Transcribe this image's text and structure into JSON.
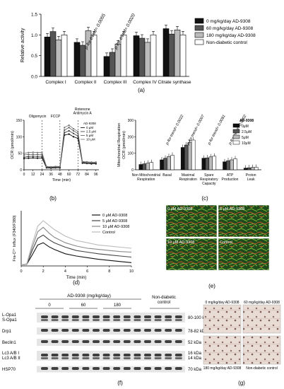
{
  "figure": {
    "panel_labels": [
      "(a)",
      "(b)",
      "(c)",
      "(d)",
      "(e)",
      "(f)",
      "(g)"
    ]
  },
  "colors": {
    "black": "#111111",
    "dark_gray": "#555555",
    "light_gray": "#bbbbbb",
    "white": "#ffffff"
  },
  "chart_data": [
    {
      "id": "a",
      "type": "bar",
      "ylabel": "Relative activity",
      "ylim": [
        0,
        1.5
      ],
      "yticks": [
        "0.0",
        "0.5",
        "1.0",
        "1.5"
      ],
      "categories": [
        "Complex I",
        "Complex II",
        "Complex III",
        "Complex IV",
        "Citrate synthase"
      ],
      "series": [
        {
          "name": "0 mg/kg/day AD-9308",
          "color": "#111111",
          "values": [
            0.95,
            0.82,
            0.48,
            0.98,
            1.15
          ]
        },
        {
          "name": "60 mg/kg/day AD-9308",
          "color": "#555555",
          "values": [
            1.08,
            0.75,
            0.58,
            0.92,
            1.02
          ]
        },
        {
          "name": "180 mg/kg/day AD-9308",
          "color": "#bbbbbb",
          "values": [
            0.88,
            1.1,
            0.78,
            0.82,
            1.12
          ]
        },
        {
          "name": "Non-diabetic control",
          "color": "#ffffff",
          "values": [
            1.0,
            1.0,
            1.0,
            1.0,
            1.0
          ]
        }
      ],
      "annotations": [
        {
          "category": "Complex II",
          "text": "p-for-trend= 0.0055"
        },
        {
          "category": "Complex III",
          "text": "p-for-trend= 0.0020"
        }
      ]
    },
    {
      "id": "b",
      "type": "line",
      "ylabel": "OCR (pmol/min)",
      "xlabel": "Time (min)",
      "ylim": [
        0,
        150
      ],
      "xlim": [
        0,
        100
      ],
      "yticks": [
        "0",
        "50",
        "100",
        "150"
      ],
      "xticks": [
        "0",
        "12",
        "24",
        "36",
        "48",
        "60",
        "72",
        "84",
        "96"
      ],
      "injections": [
        "Oligomycin",
        "FCCP",
        "Rotenone\nAntimycin A"
      ],
      "legend_title": "AD-9308",
      "series": [
        {
          "name": "0 μM",
          "x": [
            0,
            6,
            12,
            18,
            24,
            30,
            36,
            42,
            48,
            54,
            60,
            66,
            72,
            78,
            84,
            90,
            96
          ],
          "y": [
            34,
            35,
            36,
            35,
            36,
            6,
            5,
            6,
            6,
            105,
            108,
            100,
            95,
            20,
            19,
            18,
            18
          ]
        },
        {
          "name": "2.5 μM",
          "x": [
            0,
            6,
            12,
            18,
            24,
            30,
            36,
            42,
            48,
            54,
            60,
            66,
            72,
            78,
            84,
            90,
            96
          ],
          "y": [
            38,
            40,
            41,
            40,
            41,
            8,
            7,
            8,
            8,
            112,
            118,
            110,
            102,
            22,
            20,
            20,
            20
          ]
        },
        {
          "name": "5 μM",
          "x": [
            0,
            6,
            12,
            18,
            24,
            30,
            36,
            42,
            48,
            54,
            60,
            66,
            72,
            78,
            84,
            90,
            96
          ],
          "y": [
            45,
            46,
            47,
            46,
            47,
            9,
            8,
            9,
            9,
            120,
            128,
            118,
            110,
            24,
            22,
            22,
            22
          ]
        },
        {
          "name": "10 μM",
          "x": [
            0,
            6,
            12,
            18,
            24,
            30,
            36,
            42,
            48,
            54,
            60,
            66,
            72,
            78,
            84,
            90,
            96
          ],
          "y": [
            50,
            52,
            53,
            52,
            53,
            10,
            9,
            10,
            10,
            128,
            135,
            124,
            116,
            25,
            24,
            23,
            23
          ]
        }
      ]
    },
    {
      "id": "c",
      "type": "bar",
      "ylabel": "Mitochondrial Respiration\nOCR (pmol/min)",
      "ylim": [
        0,
        300
      ],
      "yticks": [
        "0",
        "100",
        "200",
        "300"
      ],
      "categories": [
        "Non Mitochondrial\nRespiration",
        "Basal",
        "Maximal\nRespiration",
        "Spare\nRespiratory\nCapacity",
        "ATP\nProduction",
        "Proton\nLeak"
      ],
      "legend_title": "AD-9308",
      "series": [
        {
          "name": "0μM",
          "color": "#111111",
          "values": [
            32,
            60,
            135,
            70,
            48,
            10
          ]
        },
        {
          "name": "2.5μM",
          "color": "#555555",
          "values": [
            36,
            70,
            150,
            72,
            55,
            12
          ]
        },
        {
          "name": "5μM",
          "color": "#bbbbbb",
          "values": [
            40,
            80,
            165,
            78,
            60,
            14
          ]
        },
        {
          "name": "10μM",
          "color": "#ffffff",
          "values": [
            44,
            88,
            180,
            82,
            66,
            15
          ]
        }
      ],
      "annotations": [
        {
          "category": "Basal",
          "text": "p-for-trend= 0.0022"
        },
        {
          "category": "Maximal\nRespiration",
          "text": "p-for-trend= 0.0007"
        },
        {
          "category": "Spare\nRespiratory\nCapacity",
          "text": "p-for-trend= 0.0081"
        },
        {
          "category": "ATP\nProduction",
          "text": "p-for-trend= 0.0002"
        }
      ]
    },
    {
      "id": "d",
      "type": "line",
      "ylabel": "Fra-C²⁺ Influx (F340/F380)",
      "xlabel": "Time (min)",
      "xlim": [
        0,
        10
      ],
      "xticks": [
        "0",
        "2",
        "4",
        "6",
        "8",
        "10"
      ],
      "series": [
        {
          "name": "0 μM AD-9308",
          "color": "#111111",
          "x": [
            0,
            0.5,
            1,
            1.5,
            2,
            2.5,
            3,
            4,
            5,
            6,
            7,
            8,
            9,
            10
          ],
          "y": [
            0.02,
            0.03,
            0.2,
            0.38,
            0.42,
            0.35,
            0.3,
            0.22,
            0.18,
            0.15,
            0.12,
            0.1,
            0.08,
            0.06
          ]
        },
        {
          "name": "5 μM AD-9308",
          "color": "#444444",
          "x": [
            0,
            0.5,
            1,
            1.5,
            2,
            2.5,
            3,
            4,
            5,
            6,
            7,
            8,
            9,
            10
          ],
          "y": [
            0.02,
            0.03,
            0.28,
            0.5,
            0.56,
            0.48,
            0.42,
            0.34,
            0.28,
            0.25,
            0.22,
            0.2,
            0.18,
            0.16
          ]
        },
        {
          "name": "10 μM AD-9308",
          "color": "#888888",
          "x": [
            0,
            0.5,
            1,
            1.5,
            2,
            2.5,
            3,
            4,
            5,
            6,
            7,
            8,
            9,
            10
          ],
          "y": [
            0.02,
            0.03,
            0.34,
            0.62,
            0.7,
            0.6,
            0.52,
            0.42,
            0.36,
            0.32,
            0.3,
            0.28,
            0.26,
            0.25
          ]
        },
        {
          "name": "Control",
          "color": "#bbbbbb",
          "x": [
            0,
            0.5,
            1,
            1.5,
            2,
            2.5,
            3,
            4,
            5,
            6,
            7,
            8,
            9,
            10
          ],
          "y": [
            0.02,
            0.04,
            0.4,
            0.72,
            0.82,
            0.74,
            0.66,
            0.54,
            0.46,
            0.42,
            0.38,
            0.36,
            0.34,
            0.32
          ]
        }
      ]
    }
  ],
  "panel_e": {
    "labels": [
      "0 μM AD-9308",
      "5 μM AD-9308",
      "10 μM AD-9308",
      "Control"
    ]
  },
  "panel_f": {
    "header": "AD-9308 (mg/kg/day)",
    "groups": [
      "0",
      "60",
      "180"
    ],
    "control_header": "Non-diabetic\ncontrol",
    "rows": [
      {
        "label": "L-Opa1\nS-Opa1",
        "kda": "80-100 kDa"
      },
      {
        "label": "Drp1",
        "kda": "78-82 kDa"
      },
      {
        "label": "Beclin1",
        "kda": "52 kDa"
      },
      {
        "label": "Lc3 A/B I\nLc3 A/B II",
        "kda": "16 kDa\n14 kDa"
      },
      {
        "label": "HSP70",
        "kda": "70 kDa"
      }
    ]
  },
  "panel_g": {
    "labels": [
      "0 mg/kg/day AD-9308",
      "60 mg/kg/day AD-9308",
      "180 mg/kg/day AD-9308",
      "Non-diabetic control"
    ]
  }
}
